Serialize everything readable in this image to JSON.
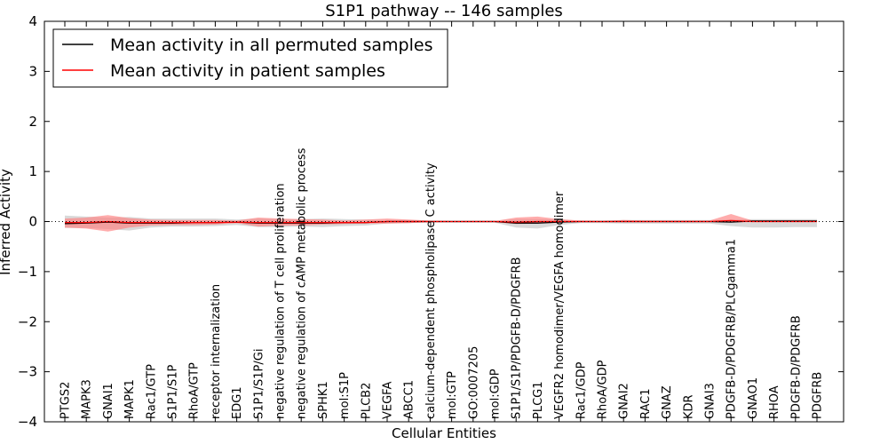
{
  "chart_data": {
    "type": "line",
    "title": "S1P1 pathway -- 146 samples",
    "xlabel": "Cellular Entities",
    "ylabel": "Inferred Activity",
    "ylim": [
      -4,
      4
    ],
    "yticks": [
      "−4",
      "−3",
      "−2",
      "−1",
      "0",
      "1",
      "2",
      "3",
      "4"
    ],
    "ytick_values": [
      -4,
      -3,
      -2,
      -1,
      0,
      1,
      2,
      3,
      4
    ],
    "grid": false,
    "legend_position": "top-left",
    "categories": [
      "PTGS2",
      "MAPK3",
      "GNAI1",
      "MAPK1",
      "Rac1/GTP",
      "S1P1/S1P",
      "RhoA/GTP",
      "receptor internalization",
      "EDG1",
      "S1P1/S1P/Gi",
      "negative regulation of T cell proliferation",
      "negative regulation of cAMP metabolic process",
      "SPHK1",
      "mol:S1P",
      "PLCB2",
      "VEGFA",
      "ABCC1",
      "calcium-dependent phospholipase C activity",
      "mol:GTP",
      "GO:0007205",
      "mol:GDP",
      "S1P1/S1P/PDGFB-D/PDGFRB",
      "PLCG1",
      "VEGFR2 homodimer/VEGFA homodimer",
      "Rac1/GDP",
      "RhoA/GDP",
      "GNAI2",
      "RAC1",
      "GNAZ",
      "KDR",
      "GNAI3",
      "PDGFB-D/PDGFRB/PLCgamma1",
      "GNAO1",
      "RHOA",
      "PDGFB-D/PDGFRB",
      "PDGFRB"
    ],
    "series": [
      {
        "name": "Mean activity in all permuted samples",
        "color": "#000000",
        "values": [
          -0.04,
          -0.03,
          -0.01,
          -0.03,
          -0.03,
          -0.03,
          -0.02,
          -0.02,
          -0.01,
          -0.03,
          -0.03,
          -0.03,
          -0.03,
          -0.02,
          -0.02,
          0.0,
          0.0,
          0.0,
          0.0,
          0.0,
          0.0,
          -0.03,
          -0.03,
          -0.01,
          0.0,
          0.0,
          0.0,
          0.0,
          0.0,
          0.0,
          0.0,
          -0.01,
          0.01,
          0.01,
          0.01,
          0.01
        ],
        "band_upper": [
          0.12,
          0.1,
          0.08,
          0.09,
          0.06,
          0.06,
          0.06,
          0.06,
          0.04,
          0.06,
          0.05,
          0.05,
          0.06,
          0.05,
          0.04,
          0.03,
          0.03,
          0.02,
          0.02,
          0.02,
          0.02,
          0.05,
          0.05,
          0.04,
          0.02,
          0.02,
          0.03,
          0.03,
          0.03,
          0.03,
          0.03,
          0.04,
          0.05,
          0.05,
          0.05,
          0.05
        ],
        "band_lower": [
          -0.13,
          -0.13,
          -0.15,
          -0.18,
          -0.12,
          -0.1,
          -0.1,
          -0.09,
          -0.07,
          -0.11,
          -0.11,
          -0.1,
          -0.11,
          -0.09,
          -0.08,
          -0.04,
          -0.03,
          -0.02,
          -0.02,
          -0.02,
          -0.02,
          -0.12,
          -0.14,
          -0.07,
          -0.03,
          -0.03,
          -0.04,
          -0.04,
          -0.04,
          -0.04,
          -0.04,
          -0.09,
          -0.12,
          -0.12,
          -0.11,
          -0.11
        ]
      },
      {
        "name": "Mean activity in patient samples",
        "color": "#ff0000",
        "values": [
          -0.02,
          -0.02,
          0.0,
          -0.02,
          -0.02,
          -0.02,
          -0.02,
          -0.02,
          -0.01,
          -0.02,
          -0.02,
          -0.02,
          -0.02,
          -0.02,
          -0.02,
          0.0,
          0.0,
          0.0,
          0.0,
          0.0,
          0.0,
          -0.01,
          0.0,
          0.0,
          0.0,
          0.0,
          0.0,
          0.0,
          0.0,
          0.0,
          0.0,
          0.02,
          0.0,
          0.0,
          0.0,
          0.0
        ],
        "band_upper": [
          0.06,
          0.08,
          0.13,
          0.07,
          0.04,
          0.03,
          0.03,
          0.03,
          0.02,
          0.08,
          0.06,
          0.05,
          0.04,
          0.02,
          0.04,
          0.06,
          0.04,
          0.02,
          0.01,
          0.01,
          0.01,
          0.08,
          0.1,
          0.05,
          0.02,
          0.01,
          0.03,
          0.02,
          0.02,
          0.02,
          0.02,
          0.15,
          0.02,
          0.01,
          0.01,
          0.01
        ],
        "band_lower": [
          -0.12,
          -0.14,
          -0.2,
          -0.12,
          -0.08,
          -0.07,
          -0.07,
          -0.06,
          -0.03,
          -0.1,
          -0.08,
          -0.08,
          -0.06,
          -0.05,
          -0.04,
          -0.04,
          -0.03,
          -0.01,
          -0.01,
          -0.01,
          -0.01,
          -0.05,
          -0.04,
          -0.02,
          -0.01,
          -0.01,
          -0.01,
          -0.01,
          -0.01,
          -0.01,
          -0.01,
          -0.02,
          -0.01,
          -0.01,
          -0.01,
          -0.01
        ]
      }
    ]
  },
  "colors": {
    "permuted_band": "#cccccc",
    "patient_band": "#ff8080",
    "axis": "#000000"
  }
}
